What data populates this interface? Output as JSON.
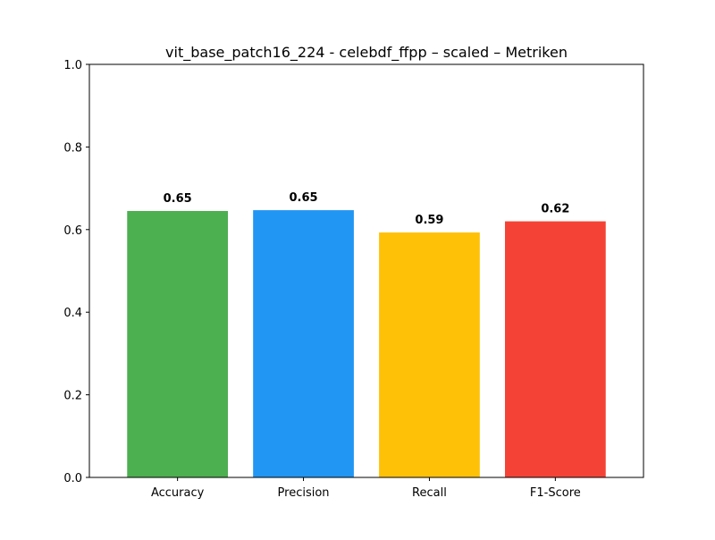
{
  "chart_data": {
    "type": "bar",
    "title": "vit_base_patch16_224 - celebdf_ffpp – scaled – Metriken",
    "xlabel": "",
    "ylabel": "",
    "categories": [
      "Accuracy",
      "Precision",
      "Recall",
      "F1-Score"
    ],
    "values": [
      0.645,
      0.647,
      0.593,
      0.62
    ],
    "value_labels": [
      "0.65",
      "0.65",
      "0.59",
      "0.62"
    ],
    "colors": [
      "#4caf50",
      "#2196f3",
      "#ffc107",
      "#f44336"
    ],
    "ylim": [
      0,
      1.0
    ],
    "yticks": [
      0.0,
      0.2,
      0.4,
      0.6,
      0.8,
      1.0
    ],
    "ytick_labels": [
      "0.0",
      "0.2",
      "0.4",
      "0.6",
      "0.8",
      "1.0"
    ],
    "grid": false,
    "legend": "none"
  }
}
